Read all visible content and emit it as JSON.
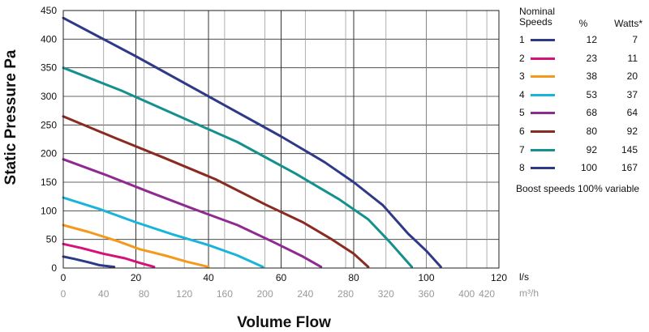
{
  "chart_data": {
    "type": "line",
    "xlabel": "Volume Flow",
    "ylabel": "Static Pressure Pa",
    "xlim": [
      0,
      120
    ],
    "ylim": [
      0,
      450
    ],
    "x_ticks": [
      0,
      20,
      40,
      60,
      80,
      100,
      120
    ],
    "x_unit": "l/s",
    "x2_ticks": [
      0,
      40,
      80,
      120,
      160,
      200,
      240,
      280,
      320,
      360,
      400,
      420
    ],
    "x2_unit": "m³/h",
    "y_ticks": [
      0,
      50,
      100,
      150,
      200,
      250,
      300,
      350,
      400,
      450
    ],
    "grid": true,
    "legend": {
      "title": "Nominal Speeds",
      "col_percent": "%",
      "col_watts": "Watts*",
      "placement": "right",
      "note": "Boost speeds 100% variable"
    },
    "series": [
      {
        "name": "1",
        "percent": "12",
        "watts": "7",
        "color": "#2e3a87",
        "x": [
          0,
          3,
          7,
          10,
          14
        ],
        "y": [
          20,
          16,
          10,
          5,
          2
        ]
      },
      {
        "name": "2",
        "percent": "23",
        "watts": "11",
        "color": "#d6127a",
        "x": [
          0,
          5,
          11,
          17,
          21,
          25
        ],
        "y": [
          42,
          35,
          25,
          17,
          9,
          2
        ]
      },
      {
        "name": "3",
        "percent": "38",
        "watts": "20",
        "color": "#f39a1e",
        "x": [
          0,
          7,
          15,
          21,
          28,
          34,
          40
        ],
        "y": [
          75,
          63,
          47,
          33,
          22,
          11,
          2
        ]
      },
      {
        "name": "4",
        "percent": "53",
        "watts": "37",
        "color": "#19b4d9",
        "x": [
          0,
          10,
          20,
          30,
          40,
          48,
          55
        ],
        "y": [
          123,
          103,
          80,
          59,
          40,
          22,
          2
        ]
      },
      {
        "name": "5",
        "percent": "68",
        "watts": "64",
        "color": "#8e2a90",
        "x": [
          0,
          12,
          24,
          36,
          48,
          58,
          66,
          71
        ],
        "y": [
          190,
          162,
          132,
          103,
          75,
          45,
          20,
          2
        ]
      },
      {
        "name": "6",
        "percent": "80",
        "watts": "92",
        "color": "#8a2b22",
        "x": [
          0,
          14,
          28,
          42,
          56,
          66,
          74,
          80,
          84
        ],
        "y": [
          265,
          228,
          192,
          155,
          110,
          80,
          50,
          25,
          2
        ]
      },
      {
        "name": "7",
        "percent": "92",
        "watts": "145",
        "color": "#14908e",
        "x": [
          0,
          16,
          32,
          48,
          64,
          76,
          84,
          90,
          96
        ],
        "y": [
          350,
          310,
          265,
          220,
          165,
          120,
          85,
          45,
          2
        ]
      },
      {
        "name": "8",
        "percent": "100",
        "watts": "167",
        "color": "#2e3a87",
        "x": [
          0,
          20,
          40,
          60,
          72,
          80,
          88,
          95,
          100,
          104
        ],
        "y": [
          437,
          370,
          300,
          230,
          185,
          150,
          110,
          60,
          30,
          2
        ]
      }
    ]
  }
}
